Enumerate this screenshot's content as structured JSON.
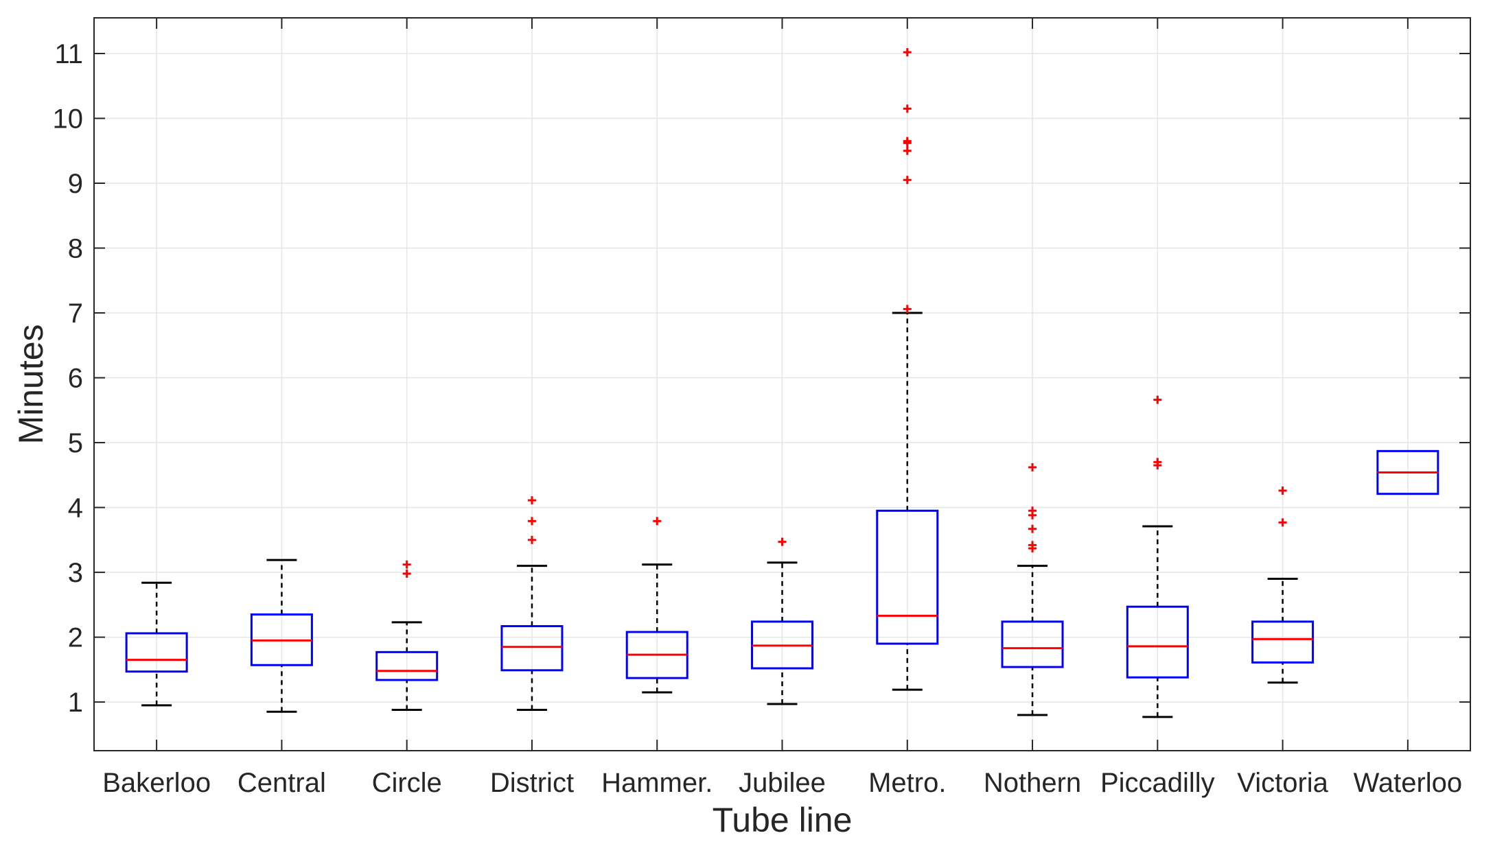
{
  "chart_data": {
    "type": "boxplot",
    "title": "",
    "xlabel": "Tube line",
    "ylabel": "Minutes",
    "ylim": [
      0.25,
      11.55
    ],
    "yticks": [
      1,
      2,
      3,
      4,
      5,
      6,
      7,
      8,
      9,
      10,
      11
    ],
    "ytick_labels": [
      "1",
      "2",
      "3",
      "4",
      "5",
      "6",
      "7",
      "8",
      "9",
      "10",
      "11"
    ],
    "grid": true,
    "colors": {
      "box": "#0000ff",
      "median": "#ff0000",
      "outlier": "#ff0000",
      "whisker": "#000000",
      "grid": "#e5e5e5",
      "axis": "#262626"
    },
    "categories": [
      "Bakerloo",
      "Central",
      "Circle",
      "District",
      "Hammer.",
      "Jubilee",
      "Metro.",
      "Nothern",
      "Piccadilly",
      "Victoria",
      "Waterloo"
    ],
    "boxes": [
      {
        "name": "Bakerloo",
        "whisker_low": 0.95,
        "q1": 1.47,
        "median": 1.65,
        "q3": 2.06,
        "whisker_high": 2.84,
        "outliers": []
      },
      {
        "name": "Central",
        "whisker_low": 0.85,
        "q1": 1.57,
        "median": 1.95,
        "q3": 2.35,
        "whisker_high": 3.19,
        "outliers": []
      },
      {
        "name": "Circle",
        "whisker_low": 0.88,
        "q1": 1.34,
        "median": 1.48,
        "q3": 1.77,
        "whisker_high": 2.23,
        "outliers": [
          2.98,
          3.12
        ]
      },
      {
        "name": "District",
        "whisker_low": 0.88,
        "q1": 1.49,
        "median": 1.85,
        "q3": 2.17,
        "whisker_high": 3.1,
        "outliers": [
          3.5,
          3.79,
          4.11
        ]
      },
      {
        "name": "Hammer.",
        "whisker_low": 1.15,
        "q1": 1.37,
        "median": 1.73,
        "q3": 2.08,
        "whisker_high": 3.12,
        "outliers": [
          3.79
        ]
      },
      {
        "name": "Jubilee",
        "whisker_low": 0.97,
        "q1": 1.52,
        "median": 1.87,
        "q3": 2.24,
        "whisker_high": 3.15,
        "outliers": [
          3.47
        ]
      },
      {
        "name": "Metro.",
        "whisker_low": 1.19,
        "q1": 1.9,
        "median": 2.33,
        "q3": 3.95,
        "whisker_high": 7.0,
        "outliers": [
          7.06,
          9.05,
          9.5,
          9.62,
          9.65,
          10.15,
          11.02
        ]
      },
      {
        "name": "Nothern",
        "whisker_low": 0.8,
        "q1": 1.54,
        "median": 1.83,
        "q3": 2.24,
        "whisker_high": 3.1,
        "outliers": [
          3.37,
          3.42,
          3.67,
          3.88,
          3.95,
          4.62
        ]
      },
      {
        "name": "Piccadilly",
        "whisker_low": 0.77,
        "q1": 1.38,
        "median": 1.86,
        "q3": 2.47,
        "whisker_high": 3.71,
        "outliers": [
          4.65,
          4.7,
          5.66
        ]
      },
      {
        "name": "Victoria",
        "whisker_low": 1.3,
        "q1": 1.61,
        "median": 1.97,
        "q3": 2.24,
        "whisker_high": 2.9,
        "outliers": [
          3.77,
          4.26
        ]
      },
      {
        "name": "Waterloo",
        "whisker_low": 4.21,
        "q1": 4.21,
        "median": 4.54,
        "q3": 4.87,
        "whisker_high": 4.87,
        "outliers": []
      }
    ]
  }
}
